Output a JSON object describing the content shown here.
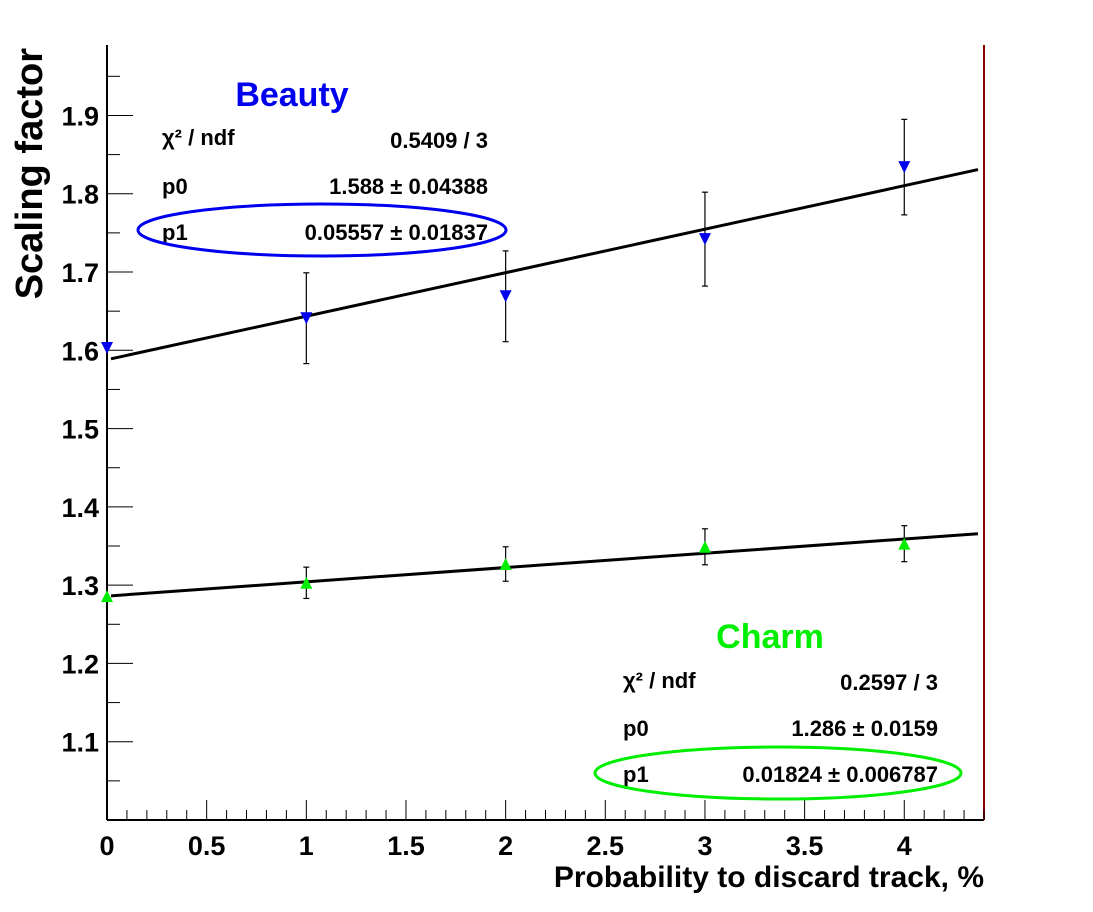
{
  "colors": {
    "beauty": "#0000ee",
    "charm": "#00ee00",
    "fit_line": "#000000",
    "frame_right": "#8b0000",
    "axes": "#000000"
  },
  "chart_data": {
    "type": "scatter",
    "title": "",
    "xlabel": "Probability to discard track, %",
    "ylabel": "Scaling factor",
    "xlim": [
      0,
      4.4
    ],
    "ylim": [
      1.0,
      1.99
    ],
    "x_ticks": [
      "0",
      "0.5",
      "1",
      "1.5",
      "2",
      "2.5",
      "3",
      "3.5",
      "4"
    ],
    "y_ticks": [
      "1.1",
      "1.2",
      "1.3",
      "1.4",
      "1.5",
      "1.6",
      "1.7",
      "1.8",
      "1.9"
    ],
    "grid": false,
    "series": [
      {
        "name": "Beauty",
        "marker": "triangle-down",
        "color": "#0000ee",
        "x": [
          0,
          1,
          2,
          3,
          4
        ],
        "y": [
          1.603,
          1.641,
          1.669,
          1.742,
          1.834
        ],
        "yerr": [
          0,
          0.058,
          0.058,
          0.06,
          0.061
        ],
        "fit": {
          "chi2_label": "χ² / ndf",
          "chi2_value": "0.5409 / 3",
          "p0_label": "p0",
          "p0_value": "1.588 ± 0.04388",
          "p1_label": "p1",
          "p1_value": "0.05557 ± 0.01837",
          "p0": 1.588,
          "p1": 0.05557
        }
      },
      {
        "name": "Charm",
        "marker": "triangle-up",
        "color": "#00ee00",
        "x": [
          0,
          1,
          2,
          3,
          4
        ],
        "y": [
          1.286,
          1.303,
          1.327,
          1.349,
          1.353
        ],
        "yerr": [
          0,
          0.02,
          0.022,
          0.023,
          0.023
        ],
        "fit": {
          "chi2_label": "χ² / ndf",
          "chi2_value": "0.2597 / 3",
          "p0_label": "p0",
          "p0_value": "1.286 ± 0.0159",
          "p1_label": "p1",
          "p1_value": "0.01824 ± 0.006787",
          "p0": 1.286,
          "p1": 0.01824
        }
      }
    ]
  }
}
